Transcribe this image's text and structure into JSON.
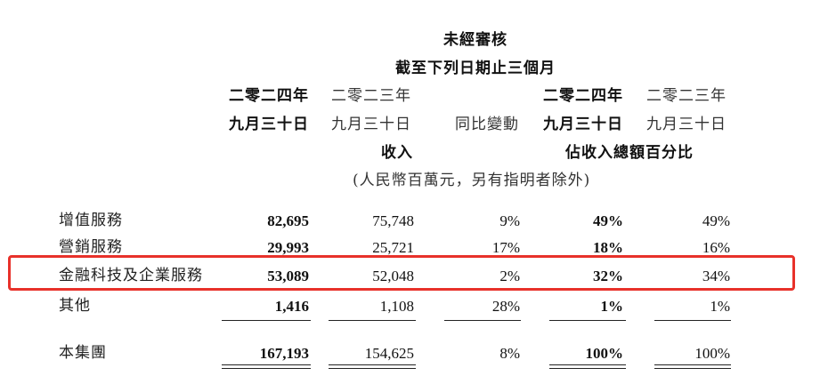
{
  "header": {
    "unaudited": "未經審核",
    "period": "截至下列日期止三個月",
    "col1_line1": "二零二四年",
    "col1_line2": "九月三十日",
    "col2_line1": "二零二三年",
    "col2_line2": "九月三十日",
    "col3": "同比變動",
    "col4_line1": "二零二四年",
    "col4_line2": "九月三十日",
    "col5_line1": "二零二三年",
    "col5_line2": "九月三十日",
    "revenue": "收入",
    "pct_of_total": "佔收入總額百分比",
    "unit_note": "(人民幣百萬元，另有指明者除外)"
  },
  "rows": [
    {
      "label": "增值服務",
      "v2024": "82,695",
      "v2023": "75,748",
      "yoy": "9%",
      "p2024": "49%",
      "p2023": "49%"
    },
    {
      "label": "營銷服務",
      "v2024": "29,993",
      "v2023": "25,721",
      "yoy": "17%",
      "p2024": "18%",
      "p2023": "16%"
    },
    {
      "label": "金融科技及企業服務",
      "v2024": "53,089",
      "v2023": "52,048",
      "yoy": "2%",
      "p2024": "32%",
      "p2023": "34%"
    },
    {
      "label": "其他",
      "v2024": "1,416",
      "v2023": "1,108",
      "yoy": "28%",
      "p2024": "1%",
      "p2023": "1%"
    }
  ],
  "total": {
    "label": "本集團",
    "v2024": "167,193",
    "v2023": "154,625",
    "yoy": "8%",
    "p2024": "100%",
    "p2023": "100%"
  },
  "colors": {
    "highlight_border": "#e8312a"
  }
}
